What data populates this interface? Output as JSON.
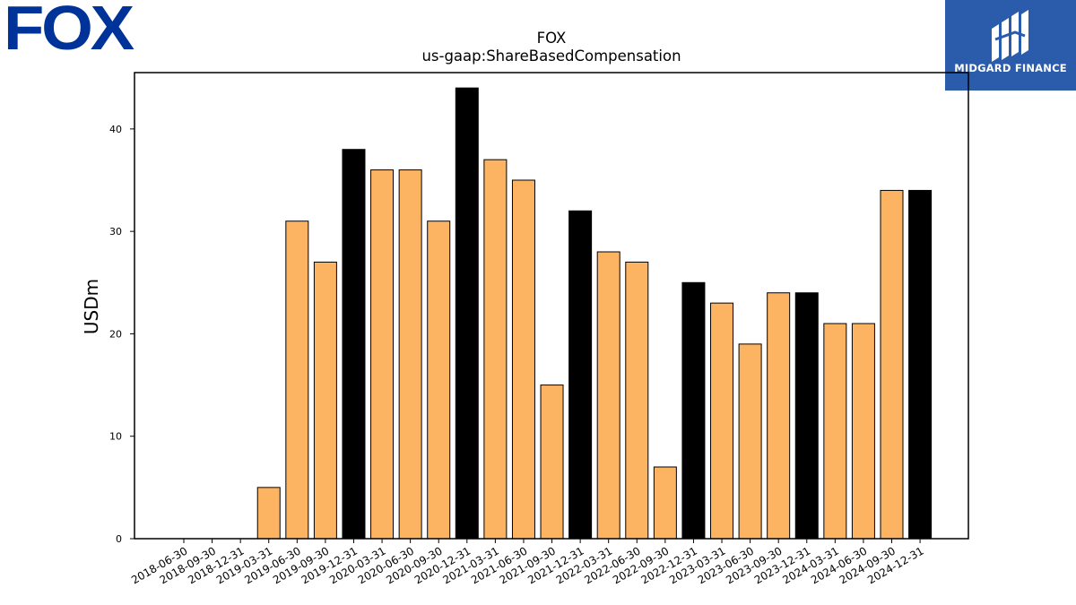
{
  "logo": {
    "text": "FOX",
    "color": "#003399"
  },
  "badge": {
    "text": "MIDGARD FINANCE",
    "bg": "#2b5bab"
  },
  "chart_data": {
    "type": "bar",
    "title": "FOX",
    "subtitle": "us-gaap:ShareBasedCompensation",
    "xlabel": "",
    "ylabel": "USDm",
    "ylim": [
      0,
      45.5
    ],
    "yticks": [
      0,
      10,
      20,
      30,
      40
    ],
    "grid": false,
    "categories": [
      "2018-06-30",
      "2018-09-30",
      "2018-12-31",
      "2019-03-31",
      "2019-06-30",
      "2019-09-30",
      "2019-12-31",
      "2020-03-31",
      "2020-06-30",
      "2020-09-30",
      "2020-12-31",
      "2021-03-31",
      "2021-06-30",
      "2021-09-30",
      "2021-12-31",
      "2022-03-31",
      "2022-06-30",
      "2022-09-30",
      "2022-12-31",
      "2023-03-31",
      "2023-06-30",
      "2023-09-30",
      "2023-12-31",
      "2024-03-31",
      "2024-06-30",
      "2024-09-30",
      "2024-12-31"
    ],
    "values": [
      0,
      0,
      0,
      5,
      31,
      27,
      38,
      36,
      36,
      31,
      44,
      37,
      35,
      15,
      32,
      28,
      27,
      7,
      25,
      23,
      19,
      24,
      24,
      21,
      21,
      34,
      34
    ],
    "colors": {
      "quarter": "#fdb462",
      "year_end": "#000000"
    },
    "highlighted_categories": [
      "2019-12-31",
      "2020-12-31",
      "2021-12-31",
      "2022-12-31",
      "2023-12-31",
      "2024-12-31"
    ]
  }
}
